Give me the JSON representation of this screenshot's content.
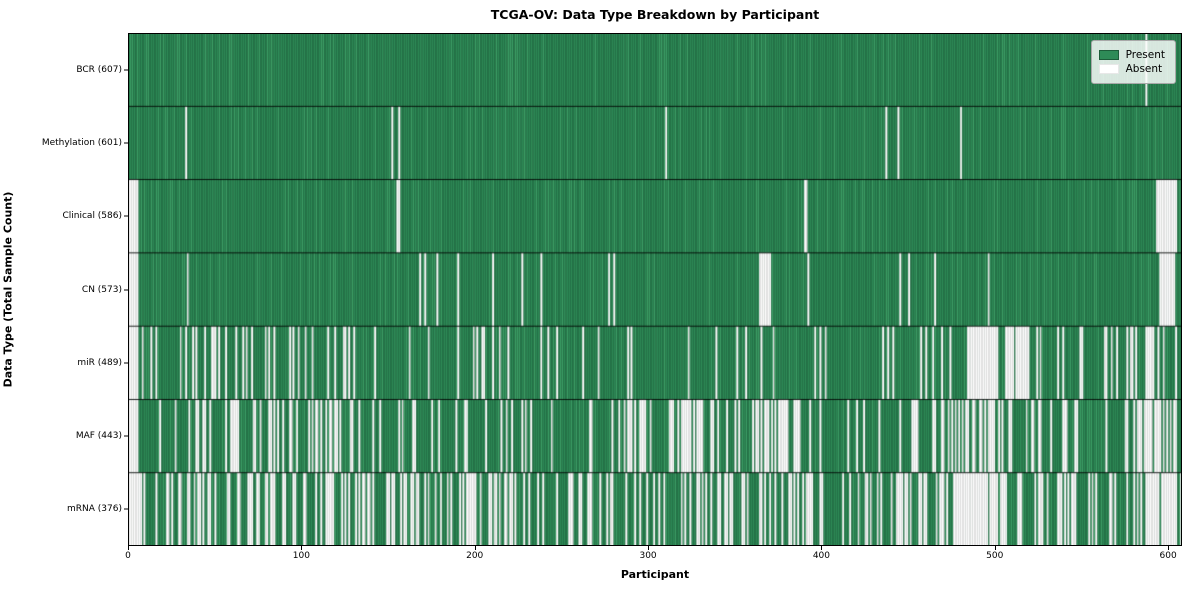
{
  "title": "TCGA-OV: Data Type Breakdown by Participant",
  "xlabel": "Participant",
  "ylabel": "Data Type (Total Sample Count)",
  "legend": {
    "present": "Present",
    "absent": "Absent"
  },
  "colors": {
    "present": "#2e8b57",
    "present_edge": "#1d5c39",
    "present_light": "#3fa168",
    "absent": "#ffffff",
    "absent_edge": "#c6c6c6",
    "border": "#000000"
  },
  "chart_data": {
    "type": "heatmap",
    "title": "TCGA-OV: Data Type Breakdown by Participant",
    "xlabel": "Participant",
    "ylabel": "Data Type (Total Sample Count)",
    "legend_entries": [
      "Present",
      "Absent"
    ],
    "legend_position": "upper right",
    "n_participants": 608,
    "x_range": [
      0,
      608
    ],
    "x_ticks": [
      0,
      100,
      200,
      300,
      400,
      500,
      600
    ],
    "cell_states": [
      "present",
      "absent"
    ],
    "rows": [
      {
        "label": "BCR (607)",
        "data_type": "BCR",
        "present_count": 607,
        "absent_zones": [
          [
            587,
            588,
            1
          ]
        ]
      },
      {
        "label": "Methylation (601)",
        "data_type": "Methylation",
        "present_count": 601,
        "absent_zones": [
          [
            33,
            34,
            1
          ],
          [
            152,
            153,
            1
          ],
          [
            156,
            157,
            1
          ],
          [
            310,
            311,
            1
          ],
          [
            437,
            438,
            1
          ],
          [
            444,
            445,
            1
          ],
          [
            480,
            481,
            1
          ]
        ]
      },
      {
        "label": "Clinical (586)",
        "data_type": "Clinical",
        "present_count": 586,
        "absent_zones": [
          [
            0,
            6,
            1
          ],
          [
            155,
            157,
            1
          ],
          [
            390,
            392,
            1
          ],
          [
            593,
            605,
            1
          ]
        ]
      },
      {
        "label": "CN (573)",
        "data_type": "CN",
        "present_count": 573,
        "absent_zones": [
          [
            0,
            6,
            1
          ],
          [
            34,
            35,
            1
          ],
          [
            168,
            169,
            1
          ],
          [
            171,
            172,
            1
          ],
          [
            178,
            179,
            1
          ],
          [
            190,
            191,
            1
          ],
          [
            210,
            211,
            1
          ],
          [
            227,
            228,
            1
          ],
          [
            238,
            239,
            1
          ],
          [
            277,
            278,
            1
          ],
          [
            280,
            281,
            1
          ],
          [
            364,
            371,
            1
          ],
          [
            392,
            393,
            1
          ],
          [
            445,
            446,
            1
          ],
          [
            450,
            451,
            1
          ],
          [
            465,
            466,
            1
          ],
          [
            496,
            497,
            1
          ],
          [
            595,
            604,
            1
          ]
        ]
      },
      {
        "label": "miR (489)",
        "data_type": "miR",
        "present_count": 489,
        "absent_zones": [
          [
            0,
            6,
            1
          ],
          [
            6,
            75,
            0.28
          ],
          [
            75,
            130,
            0.2
          ],
          [
            130,
            195,
            0.1
          ],
          [
            195,
            215,
            0.35
          ],
          [
            215,
            300,
            0.1
          ],
          [
            300,
            395,
            0.08
          ],
          [
            395,
            460,
            0.12
          ],
          [
            460,
            486,
            0.2
          ],
          [
            486,
            502,
            0.9
          ],
          [
            505,
            520,
            0.85
          ],
          [
            520,
            560,
            0.2
          ],
          [
            560,
            587,
            0.15
          ],
          [
            587,
            598,
            0.7
          ],
          [
            598,
            608,
            0.1
          ]
        ]
      },
      {
        "label": "MAF (443)",
        "data_type": "MAF",
        "present_count": 443,
        "absent_zones": [
          [
            0,
            6,
            1
          ],
          [
            6,
            60,
            0.3
          ],
          [
            60,
            130,
            0.32
          ],
          [
            130,
            230,
            0.19
          ],
          [
            230,
            289,
            0.15
          ],
          [
            289,
            300,
            0.7
          ],
          [
            300,
            320,
            0.3
          ],
          [
            320,
            332,
            0.7
          ],
          [
            332,
            360,
            0.15
          ],
          [
            360,
            388,
            0.62
          ],
          [
            388,
            450,
            0.15
          ],
          [
            450,
            475,
            0.35
          ],
          [
            475,
            505,
            0.5
          ],
          [
            505,
            560,
            0.22
          ],
          [
            560,
            580,
            0.2
          ],
          [
            580,
            605,
            0.78
          ],
          [
            605,
            608,
            0.1
          ]
        ]
      },
      {
        "label": "mRNA (376)",
        "data_type": "mRNA",
        "present_count": 376,
        "absent_zones": [
          [
            0,
            6,
            1
          ],
          [
            6,
            60,
            0.42
          ],
          [
            60,
            140,
            0.4
          ],
          [
            140,
            200,
            0.42
          ],
          [
            200,
            280,
            0.35
          ],
          [
            280,
            360,
            0.33
          ],
          [
            360,
            430,
            0.35
          ],
          [
            430,
            476,
            0.38
          ],
          [
            476,
            506,
            0.9
          ],
          [
            506,
            530,
            0.45
          ],
          [
            530,
            570,
            0.35
          ],
          [
            570,
            587,
            0.3
          ],
          [
            587,
            606,
            0.85
          ],
          [
            606,
            608,
            0.2
          ]
        ]
      }
    ]
  }
}
